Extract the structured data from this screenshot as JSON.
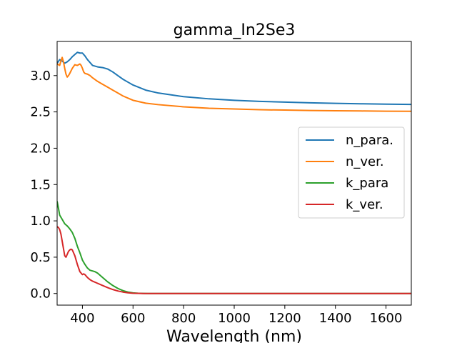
{
  "chart_data": {
    "type": "line",
    "title": "gamma_In2Se3",
    "xlabel": "Wavelength (nm)",
    "ylabel": "",
    "xlim": [
      300,
      1700
    ],
    "ylim": [
      -0.16,
      3.47
    ],
    "xticks": [
      400,
      600,
      800,
      1000,
      1200,
      1400,
      1600
    ],
    "yticks": [
      0.0,
      0.5,
      1.0,
      1.5,
      2.0,
      2.5,
      3.0
    ],
    "xtick_labels": [
      "400",
      "600",
      "800",
      "1000",
      "1200",
      "1400",
      "1600"
    ],
    "ytick_labels": [
      "0.0",
      "0.5",
      "1.0",
      "1.5",
      "2.0",
      "2.5",
      "3.0"
    ],
    "grid": false,
    "legend_position": "center-right",
    "series": [
      {
        "name": "n_para.",
        "color": "#1f77b4",
        "x": [
          300,
          310,
          320,
          330,
          340,
          350,
          360,
          370,
          380,
          390,
          400,
          410,
          420,
          430,
          440,
          450,
          460,
          480,
          500,
          520,
          540,
          560,
          580,
          600,
          650,
          700,
          800,
          900,
          1000,
          1100,
          1200,
          1300,
          1400,
          1500,
          1600,
          1700
        ],
        "y": [
          3.17,
          3.22,
          3.2,
          3.17,
          3.19,
          3.22,
          3.26,
          3.29,
          3.32,
          3.31,
          3.31,
          3.27,
          3.22,
          3.18,
          3.14,
          3.13,
          3.12,
          3.11,
          3.09,
          3.05,
          3.0,
          2.95,
          2.91,
          2.87,
          2.8,
          2.76,
          2.71,
          2.68,
          2.66,
          2.645,
          2.635,
          2.625,
          2.618,
          2.612,
          2.607,
          2.603
        ]
      },
      {
        "name": "n_ver.",
        "color": "#ff7f0e",
        "x": [
          300,
          310,
          315,
          320,
          325,
          330,
          335,
          340,
          345,
          350,
          360,
          370,
          380,
          390,
          395,
          400,
          405,
          410,
          420,
          430,
          440,
          460,
          480,
          500,
          520,
          540,
          560,
          580,
          600,
          650,
          700,
          800,
          900,
          1000,
          1100,
          1200,
          1300,
          1400,
          1500,
          1600,
          1700
        ],
        "y": [
          3.16,
          3.14,
          3.2,
          3.25,
          3.19,
          3.1,
          3.02,
          2.98,
          3.0,
          3.03,
          3.1,
          3.15,
          3.14,
          3.16,
          3.14,
          3.1,
          3.05,
          3.03,
          3.02,
          3.0,
          2.97,
          2.92,
          2.88,
          2.84,
          2.8,
          2.76,
          2.72,
          2.69,
          2.66,
          2.62,
          2.6,
          2.57,
          2.55,
          2.54,
          2.53,
          2.525,
          2.52,
          2.516,
          2.513,
          2.51,
          2.508
        ]
      },
      {
        "name": "k_para",
        "color": "#2ca02c",
        "x": [
          300,
          305,
          310,
          320,
          330,
          340,
          350,
          360,
          370,
          380,
          390,
          400,
          410,
          420,
          430,
          440,
          450,
          460,
          480,
          500,
          520,
          540,
          560,
          580,
          600,
          620,
          640,
          660,
          700,
          800,
          1000,
          1200,
          1400,
          1600,
          1700
        ],
        "y": [
          1.27,
          1.18,
          1.08,
          1.02,
          0.96,
          0.93,
          0.89,
          0.84,
          0.76,
          0.65,
          0.56,
          0.46,
          0.4,
          0.35,
          0.32,
          0.31,
          0.3,
          0.28,
          0.22,
          0.16,
          0.11,
          0.07,
          0.04,
          0.02,
          0.008,
          0.003,
          0.001,
          0.0,
          0.0,
          0.0,
          0.0,
          0.0,
          0.0,
          0.0,
          0.0
        ]
      },
      {
        "name": "k_ver.",
        "color": "#d62728",
        "x": [
          300,
          305,
          310,
          315,
          320,
          325,
          330,
          335,
          340,
          345,
          350,
          355,
          360,
          370,
          375,
          380,
          385,
          390,
          395,
          400,
          405,
          410,
          420,
          430,
          440,
          460,
          480,
          500,
          520,
          540,
          560,
          580,
          600,
          620,
          640,
          660,
          700,
          800,
          1000,
          1200,
          1400,
          1600,
          1700
        ],
        "y": [
          0.92,
          0.91,
          0.88,
          0.82,
          0.72,
          0.62,
          0.52,
          0.5,
          0.54,
          0.58,
          0.6,
          0.61,
          0.6,
          0.52,
          0.46,
          0.4,
          0.35,
          0.3,
          0.28,
          0.26,
          0.27,
          0.26,
          0.22,
          0.19,
          0.17,
          0.14,
          0.11,
          0.08,
          0.055,
          0.035,
          0.02,
          0.01,
          0.004,
          0.002,
          0.0,
          0.0,
          0.0,
          0.0,
          0.0,
          0.0,
          0.0,
          0.0,
          0.0
        ]
      }
    ]
  }
}
